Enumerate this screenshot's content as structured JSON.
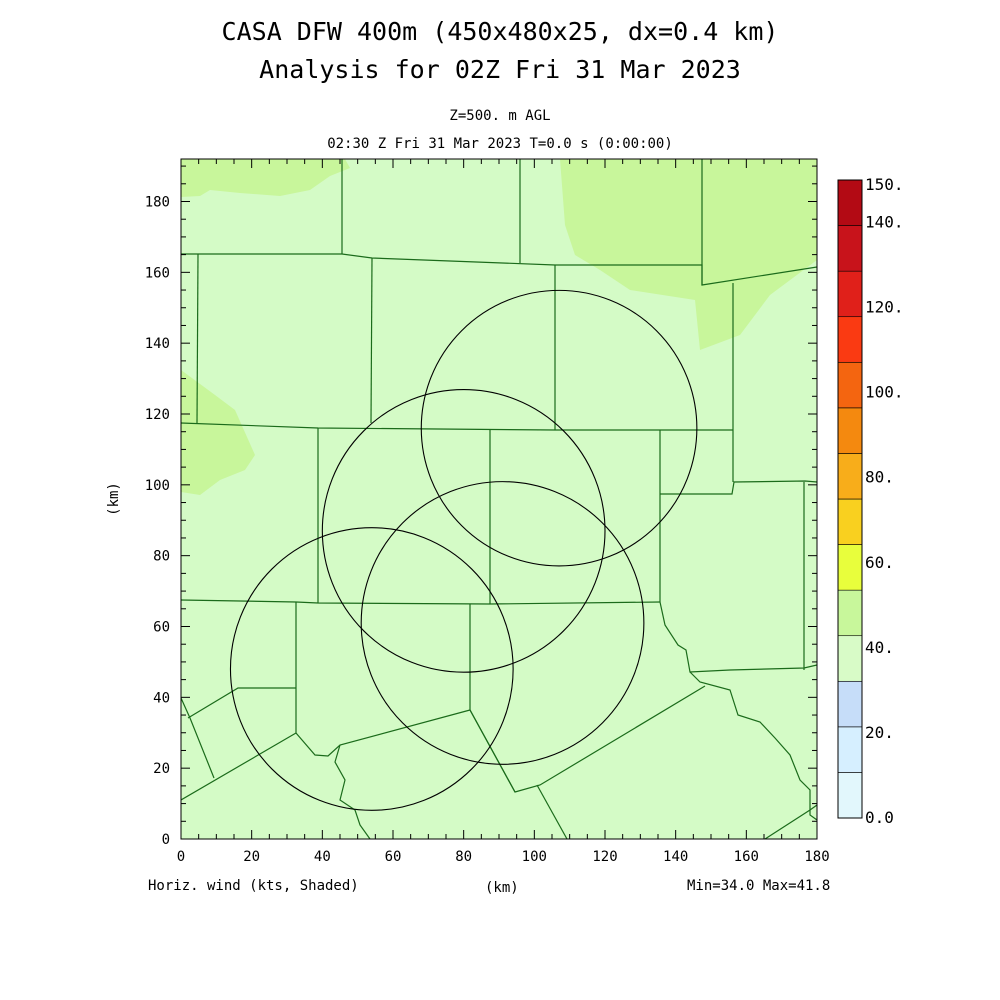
{
  "title": {
    "line1": "CASA DFW 400m (450x480x25, dx=0.4 km)",
    "line2": "Analysis for 02Z Fri 31 Mar 2023"
  },
  "subtitle": {
    "level": "Z=500. m AGL",
    "time": "02:30 Z Fri 31 Mar 2023   T=0.0 s (0:00:00)"
  },
  "footer": {
    "field": "Horiz. wind (kts, Shaded)",
    "xunit": "(km)",
    "minmax": "Min=34.0 Max=41.8"
  },
  "yaxis_label": "(km)",
  "chart_data": {
    "type": "map",
    "field": "horizontal wind speed",
    "units": "kts",
    "xlim": [
      0,
      180
    ],
    "ylim": [
      0,
      192
    ],
    "x_ticks": [
      "0",
      "20",
      "40",
      "60",
      "80",
      "100",
      "120",
      "140",
      "160",
      "180"
    ],
    "y_ticks": [
      "0",
      "20",
      "40",
      "60",
      "80",
      "100",
      "120",
      "140",
      "160",
      "180"
    ],
    "min": 34.0,
    "max": 41.8,
    "colors": {
      "field_low": "#d4fbc6",
      "field_high": "#c8f69b",
      "county": "#1b6b1b",
      "range_ring": "#000000"
    },
    "colorbar": {
      "colors": [
        "#e2f7fc",
        "#d6efff",
        "#c6ddf9",
        "#d8fbc7",
        "#c8f79b",
        "#e8fe3c",
        "#f9d01f",
        "#f8ad1a",
        "#f4890f",
        "#f46510",
        "#fa3a12",
        "#e0201a",
        "#c8131b",
        "#b30a14"
      ],
      "labels": [
        "0.0",
        "20.",
        "40.",
        "60.",
        "80.",
        "100.",
        "120.",
        "140.",
        "150."
      ]
    },
    "radar_rings": [
      {
        "center_x": 107,
        "center_y": 116,
        "radius_km": 39
      },
      {
        "center_x": 80,
        "center_y": 87,
        "radius_km": 40
      },
      {
        "center_x": 91,
        "center_y": 61,
        "radius_km": 40
      },
      {
        "center_x": 54,
        "center_y": 48,
        "radius_km": 40
      }
    ]
  }
}
